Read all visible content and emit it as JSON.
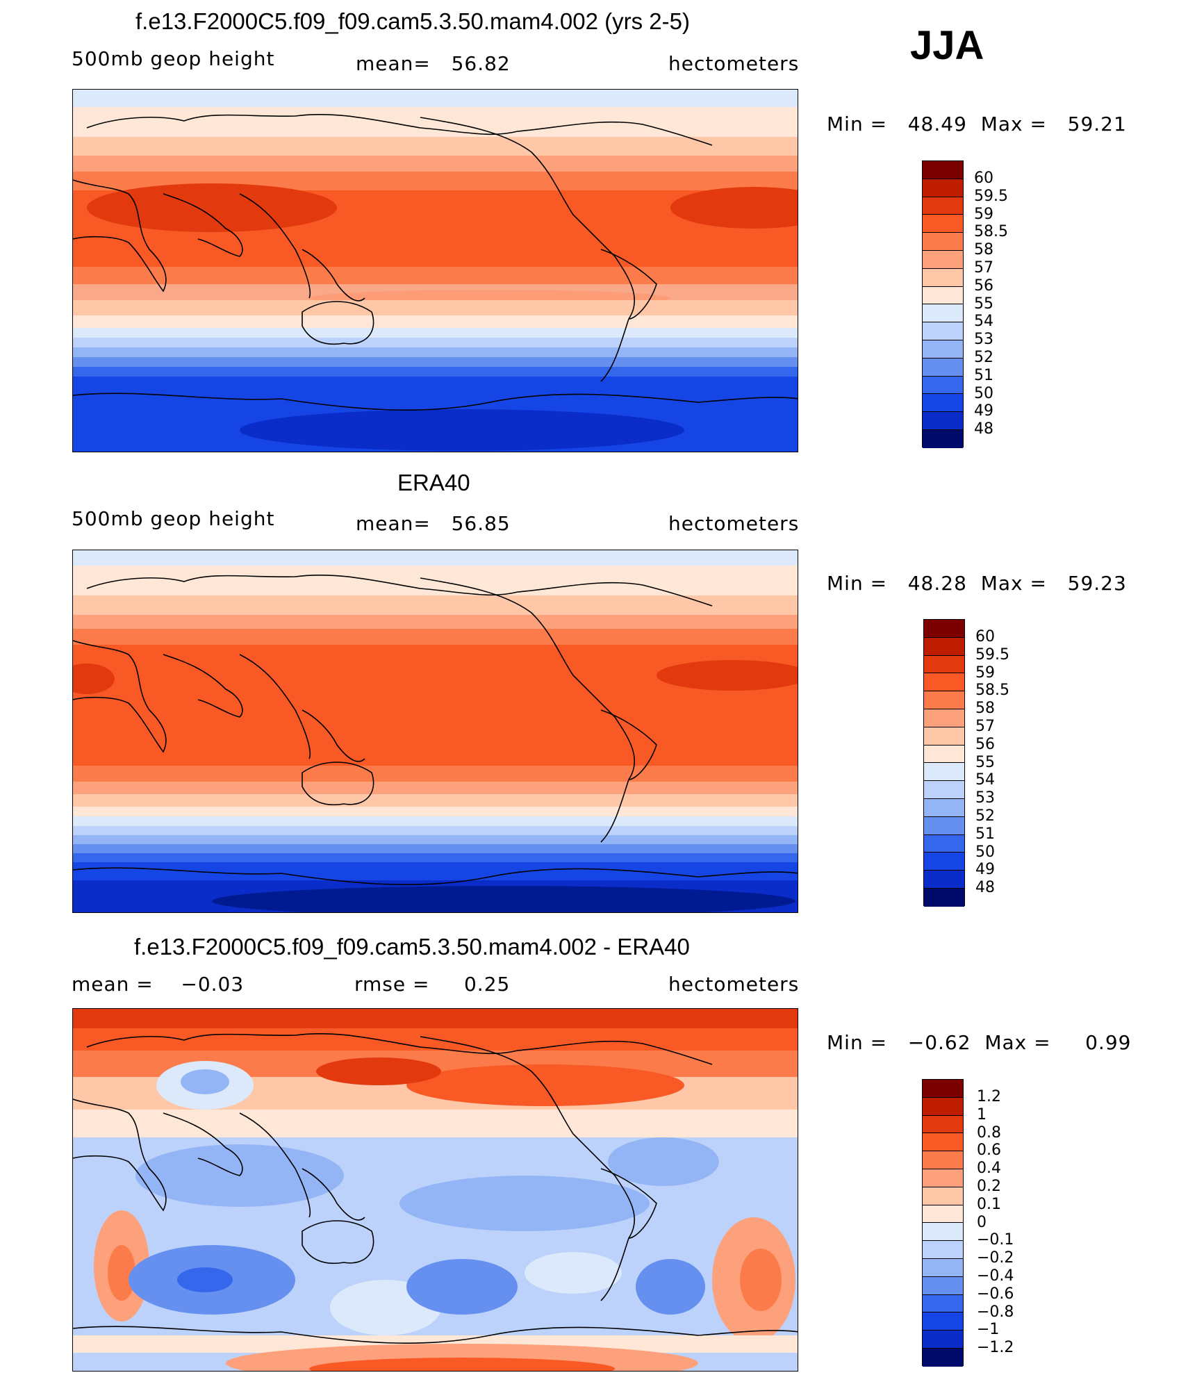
{
  "season": "JJA",
  "panels": [
    {
      "title": "f.e13.F2000C5.f09_f09.cam5.3.50.mam4.002 (yrs 2-5)",
      "left_label": "500mb geop height",
      "center_label": "mean=   56.82",
      "right_label": "hectometers",
      "minmax": "Min =   48.49  Max =   59.21",
      "legend_ticks": [
        "60",
        "59.5",
        "59",
        "58.5",
        "58",
        "57",
        "56",
        "55",
        "54",
        "53",
        "52",
        "51",
        "50",
        "49",
        "48"
      ]
    },
    {
      "title": "ERA40",
      "left_label": "500mb geop height",
      "center_label": "mean=   56.85",
      "right_label": "hectometers",
      "minmax": "Min =   48.28  Max =   59.23",
      "legend_ticks": [
        "60",
        "59.5",
        "59",
        "58.5",
        "58",
        "57",
        "56",
        "55",
        "54",
        "53",
        "52",
        "51",
        "50",
        "49",
        "48"
      ]
    },
    {
      "title": "f.e13.F2000C5.f09_f09.cam5.3.50.mam4.002 - ERA40",
      "left_label": "mean =    −0.03",
      "center_label": "rmse =     0.25",
      "right_label": "hectometers",
      "minmax": "Min =   −0.62  Max =     0.99",
      "legend_ticks": [
        "1.2",
        "1",
        "0.8",
        "0.6",
        "0.4",
        "0.2",
        "0.1",
        "0",
        "−0.1",
        "−0.2",
        "−0.4",
        "−0.6",
        "−0.8",
        "−1",
        "−1.2"
      ]
    }
  ],
  "colors": {
    "palette": [
      "#7d0000",
      "#bf1d00",
      "#e23a0e",
      "#f95a25",
      "#fb7c4a",
      "#fca17c",
      "#fdc7a8",
      "#fee7d6",
      "#dce9fb",
      "#bcd2fa",
      "#94b5f5",
      "#6690f0",
      "#3467ec",
      "#1645e6",
      "#0a2cc9",
      "#001b92",
      "#000a6a"
    ],
    "land_outline": "#000000"
  }
}
